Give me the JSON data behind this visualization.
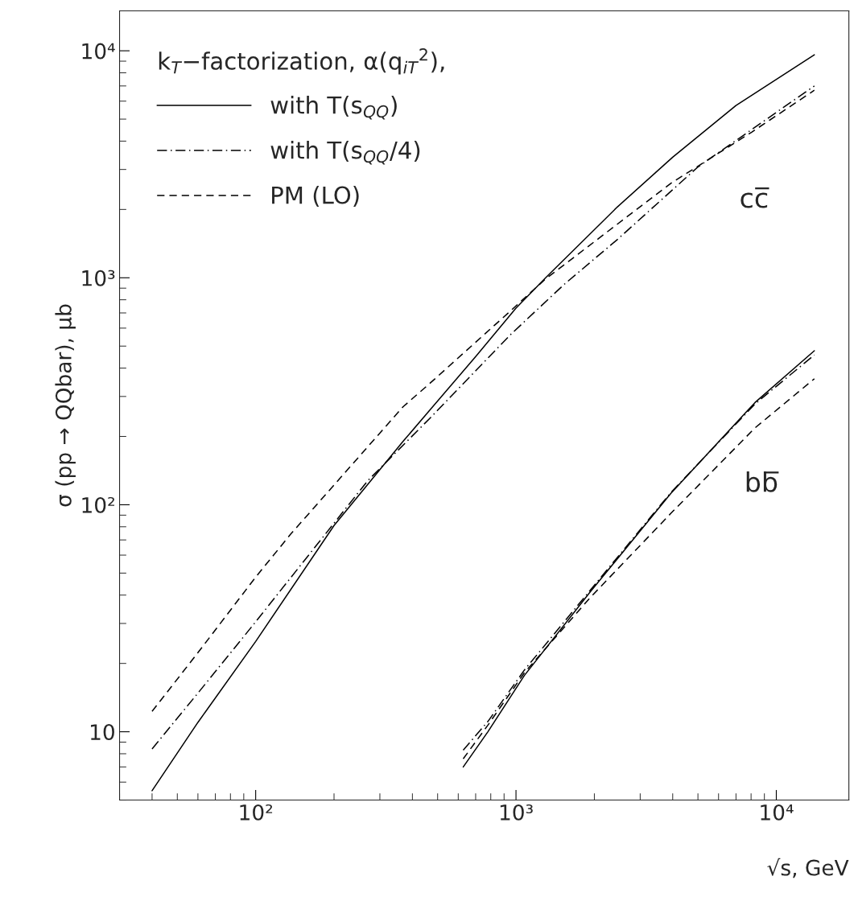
{
  "chart_data": {
    "type": "line",
    "xlabel": "√s, GeV",
    "ylabel": "σ (pp → QQbar), μb",
    "legend_title": "k$_{T}$−factorization, α(q$_{iT}$$^{2}$),",
    "log": "xy",
    "legend": "top left",
    "grid": false,
    "xlim": [
      30,
      19000
    ],
    "ylim": [
      5,
      15000
    ],
    "xticks": [
      {
        "value": 100,
        "label": "10²"
      },
      {
        "value": 1000,
        "label": "10³"
      },
      {
        "value": 10000,
        "label": "10⁴"
      }
    ],
    "yticks": [
      {
        "value": 10,
        "label": "10"
      },
      {
        "value": 100,
        "label": "10²"
      },
      {
        "value": 1000,
        "label": "10³"
      },
      {
        "value": 10000,
        "label": "10⁴"
      }
    ],
    "series": [
      {
        "name": "with T(s$_{QQ}$)",
        "color": "#000000",
        "line_style": "solid",
        "x": [
          40,
          60,
          100,
          200,
          368,
          700,
          1000,
          1300,
          2450,
          4000,
          7000,
          14000
        ],
        "values": [
          5.5,
          11,
          25,
          81,
          190,
          450,
          735,
          1000,
          2050,
          3400,
          5740,
          9600
        ]
      },
      {
        "name": "with T(s$_{QQ}$/4)",
        "color": "#000000",
        "line_style": "dashdot",
        "x": [
          40,
          60,
          100,
          270,
          466,
          950,
          1528,
          2454,
          5000,
          14000
        ],
        "values": [
          8.4,
          14.8,
          30.5,
          128,
          240,
          560,
          933,
          1476,
          3078,
          7000
        ]
      },
      {
        "name": "PM (LO)",
        "color": "#000000",
        "line_style": "dashed",
        "x": [
          40,
          60,
          100,
          136,
          368,
          466,
          948,
          1294,
          3945,
          8040,
          14000
        ],
        "values": [
          12.3,
          22.3,
          48,
          74,
          270,
          342,
          711,
          985,
          2612,
          4380,
          6700
        ]
      },
      {
        "color": "#000000",
        "line_style": "solid",
        "x": [
          627,
          780,
          1077,
          1928,
          3930,
          8280,
          14000
        ],
        "values": [
          7.0,
          10,
          17.7,
          41.3,
          112,
          282,
          477
        ]
      },
      {
        "color": "#000000",
        "line_style": "dashdot",
        "x": [
          627,
          780,
          1077,
          1928,
          3930,
          8280,
          14000
        ],
        "values": [
          8.3,
          11.1,
          18.7,
          42,
          113,
          278,
          457
        ]
      },
      {
        "color": "#000000",
        "line_style": "dashed",
        "x": [
          627,
          780,
          1077,
          1928,
          3930,
          8280,
          14000
        ],
        "values": [
          7.6,
          10.7,
          18.2,
          39,
          91.5,
          218,
          359
        ]
      }
    ],
    "annotations": [
      "cc̅",
      "bb̅"
    ]
  }
}
